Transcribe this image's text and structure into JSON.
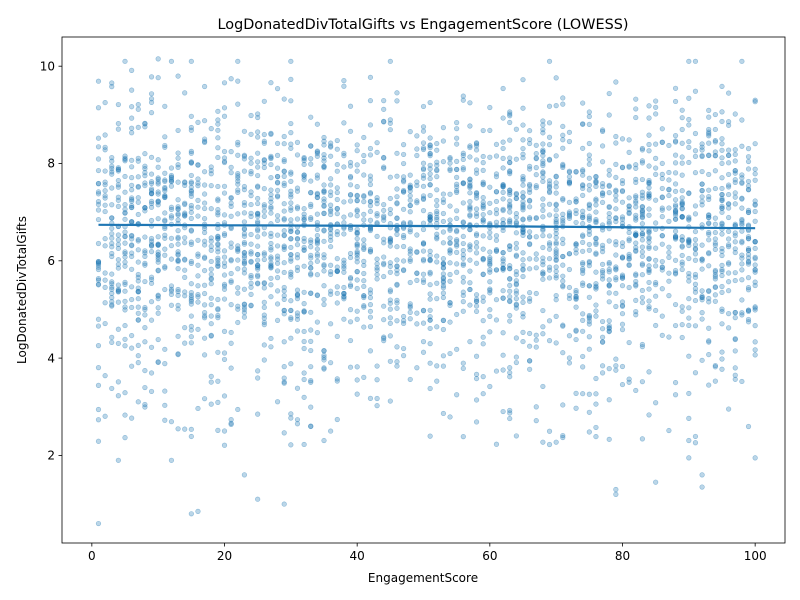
{
  "chart_data": {
    "type": "scatter",
    "title": "LogDonatedDivTotalGifts vs EngagementScore (LOWESS)",
    "xlabel": "EngagementScore",
    "ylabel": "LogDonatedDivTotalGifts",
    "xlim": [
      -4.5,
      104.5
    ],
    "ylim": [
      0.2,
      10.6
    ],
    "xticks": [
      0,
      20,
      40,
      60,
      80,
      100
    ],
    "yticks": [
      2,
      4,
      6,
      8,
      10
    ],
    "grid": false,
    "colors": {
      "points": "#1f77b4",
      "trend": "#1f77b4"
    },
    "series": [
      {
        "kind": "scatter",
        "description": "Dense cloud of roughly 3000 points across integer EngagementScore 1–100, concentrated between 5 and 8.",
        "x_range": [
          1,
          100
        ],
        "y_center": 6.7,
        "y_spread_sd": 1.25,
        "y_min": 0.6,
        "y_max": 10.1,
        "approx_count": 3000,
        "notable_points": [
          {
            "x": 1,
            "y": 0.6
          },
          {
            "x": 15,
            "y": 0.8
          },
          {
            "x": 16,
            "y": 0.85
          },
          {
            "x": 29,
            "y": 1.0
          },
          {
            "x": 25,
            "y": 1.1
          },
          {
            "x": 79,
            "y": 1.2
          },
          {
            "x": 79,
            "y": 1.3
          },
          {
            "x": 92,
            "y": 1.35
          },
          {
            "x": 85,
            "y": 1.45
          },
          {
            "x": 23,
            "y": 1.6
          },
          {
            "x": 92,
            "y": 1.6
          },
          {
            "x": 12,
            "y": 1.9
          },
          {
            "x": 4,
            "y": 1.9
          },
          {
            "x": 100,
            "y": 1.95
          },
          {
            "x": 90,
            "y": 1.95
          },
          {
            "x": 5,
            "y": 10.1
          },
          {
            "x": 10,
            "y": 10.15
          },
          {
            "x": 22,
            "y": 10.1
          },
          {
            "x": 45,
            "y": 10.1
          },
          {
            "x": 69,
            "y": 10.1
          },
          {
            "x": 98,
            "y": 10.1
          }
        ]
      },
      {
        "kind": "line",
        "description": "LOWESS trend line, nearly flat",
        "x": [
          1,
          20,
          40,
          60,
          80,
          100
        ],
        "y": [
          6.74,
          6.73,
          6.72,
          6.71,
          6.69,
          6.67
        ]
      }
    ]
  }
}
